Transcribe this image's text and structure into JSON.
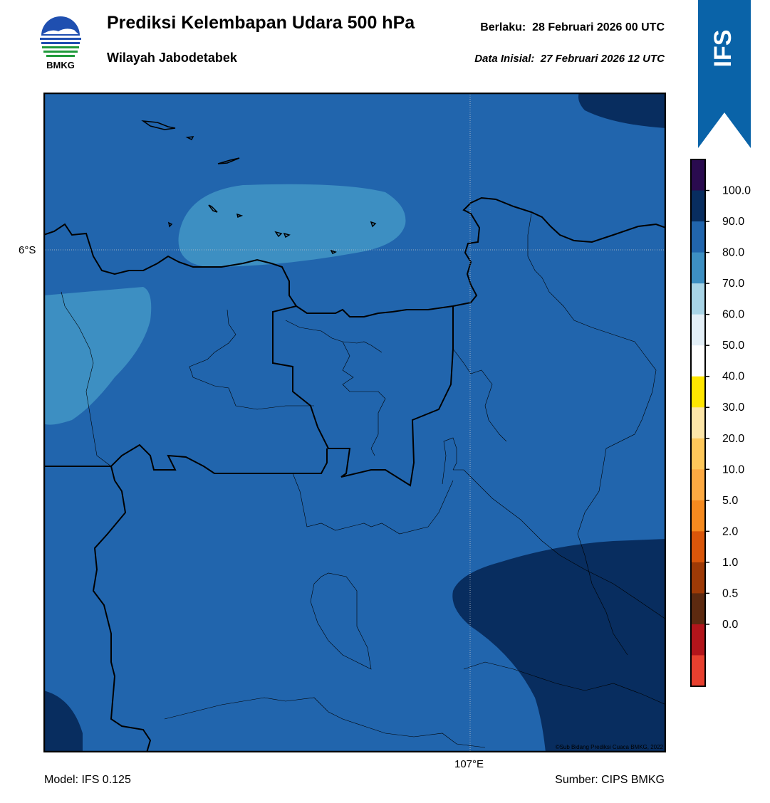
{
  "header": {
    "title": "Prediksi Kelembapan Udara 500 hPa",
    "region": "Wilayah Jabodetabek",
    "valid_label": "Berlaku:",
    "valid_time": "28 Februari 2026 00 UTC",
    "init_label": "Data Inisial:",
    "init_time": "27 Februari 2026 12 UTC"
  },
  "logo": {
    "text": "BMKG",
    "icon": "bmkg-logo"
  },
  "ribbon": {
    "text": "IFS",
    "color": "#0a63a8"
  },
  "map": {
    "lat_label": "6°S",
    "lon_label": "107°E",
    "credit": "©Sub Bidang Prediksi Cuaca BMKG, 2022"
  },
  "footer": {
    "model": "Model: IFS 0.125",
    "source": "Sumber: CIPS BMKG"
  },
  "colorbar": {
    "ticks": [
      "100.0",
      "90.0",
      "80.0",
      "70.0",
      "60.0",
      "50.0",
      "40.0",
      "30.0",
      "20.0",
      "10.0",
      "5.0",
      "2.0",
      "1.0",
      "0.5",
      "0.0"
    ],
    "colors_top_to_bottom": [
      "#2a0b4f",
      "#082d5f",
      "#2165ad",
      "#3d8fc2",
      "#a8d4e6",
      "#e3eff7",
      "#ffffff",
      "#ffe600",
      "#fde6a8",
      "#fec85a",
      "#fdaa42",
      "#f58a1f",
      "#d9560a",
      "#9e3a06",
      "#5d2a10",
      "#b3151b",
      "#e8402f"
    ]
  },
  "legend_colors": {
    "80_90": "#2165ad",
    "70_80": "#3d8fc2",
    "90_100": "#082d5f"
  }
}
